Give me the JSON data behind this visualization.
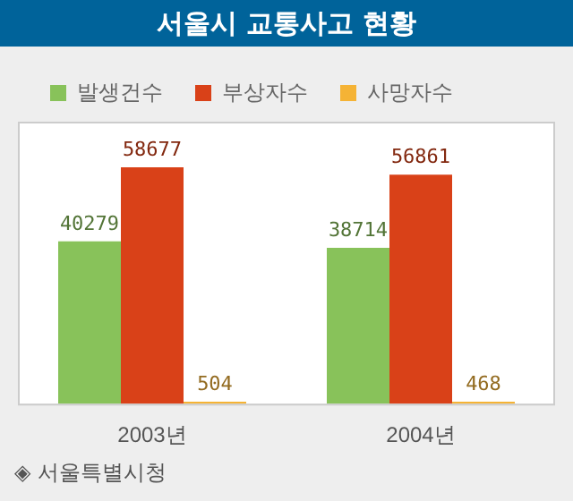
{
  "chart_data": {
    "type": "bar",
    "title": "서울시 교통사고 현황",
    "categories": [
      "2003년",
      "2004년"
    ],
    "series": [
      {
        "name": "발생건수",
        "color": "#88c25a",
        "values": [
          40279,
          38714
        ]
      },
      {
        "name": "부상자수",
        "color": "#d94118",
        "values": [
          58677,
          56861
        ]
      },
      {
        "name": "사망자수",
        "color": "#f5b335",
        "values": [
          504,
          468
        ]
      }
    ],
    "data_labels": true,
    "legend": "top",
    "grid": false,
    "annotations": [
      "◈ 서울특별시청"
    ]
  }
}
